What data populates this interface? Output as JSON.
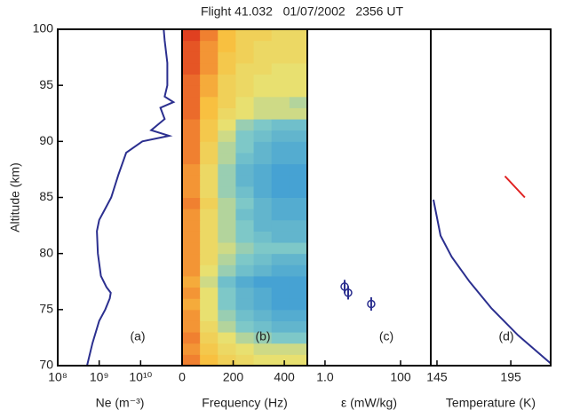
{
  "chart_data": [
    {
      "type": "line",
      "title": "Flight 41.032   01/07/2002   2356 UT",
      "panel_label": "(a)",
      "x_label": "Ne (m⁻³)",
      "y_label": "Altitude  (km)",
      "xscale": "log",
      "color": "#2b2f8f",
      "xlim": [
        100000000,
        100000000000
      ],
      "xticks": [
        {
          "value": 100000000,
          "label": "10⁸"
        },
        {
          "value": 1000000000,
          "label": "10⁹"
        },
        {
          "value": 10000000000,
          "label": "10¹⁰"
        }
      ],
      "ylim": [
        70,
        100
      ],
      "yticks": [
        70,
        75,
        80,
        85,
        90,
        95,
        100
      ],
      "x": [
        510000000.0,
        690000000.0,
        1000000000.0,
        1400000000.0,
        1800000000.0,
        1900000000.0,
        1500000000.0,
        1100000000.0,
        930000000.0,
        880000000.0,
        1000000000.0,
        1400000000.0,
        1950000000.0,
        2900000000.0,
        4500000000.0,
        11000000000.0,
        49000000000.0,
        18000000000.0,
        38000000000.0,
        30000000000.0,
        62000000000.0,
        38000000000.0,
        44000000000.0,
        44000000000.0,
        38000000000.0,
        36000000000.0
      ],
      "y": [
        70,
        72,
        74,
        75,
        76,
        76.5,
        77,
        78,
        80,
        82,
        83,
        84,
        85,
        87,
        89,
        90,
        90.5,
        91,
        92,
        93,
        93.5,
        94,
        95,
        97,
        99,
        100
      ]
    },
    {
      "type": "heatmap",
      "panel_label": "(b)",
      "x_label": "Frequency  (Hz)",
      "xlim": [
        0,
        490
      ],
      "xticks": [
        0,
        200,
        400
      ],
      "ylim": [
        70,
        100
      ],
      "x_edges": [
        0,
        70,
        140,
        210,
        280,
        350,
        420,
        490
      ],
      "y_edges": [
        70,
        71,
        72,
        73,
        74,
        75,
        76,
        77,
        78,
        79,
        80,
        81,
        82,
        83,
        84,
        85,
        86,
        87,
        88,
        89,
        90,
        91,
        92,
        93,
        94,
        95,
        96,
        97,
        98,
        99,
        100
      ],
      "colorscale": [
        [
          0,
          "#2a8fd8"
        ],
        [
          0.3,
          "#7ec8c8"
        ],
        [
          0.5,
          "#e8e070"
        ],
        [
          0.7,
          "#f8c040"
        ],
        [
          0.85,
          "#f08030"
        ],
        [
          1,
          "#e04020"
        ]
      ],
      "z": [
        [
          0.85,
          0.7,
          0.6,
          0.55,
          0.5,
          0.5,
          0.5
        ],
        [
          0.8,
          0.65,
          0.55,
          0.5,
          0.45,
          0.45,
          0.45
        ],
        [
          0.85,
          0.6,
          0.5,
          0.4,
          0.35,
          0.3,
          0.3
        ],
        [
          0.8,
          0.55,
          0.4,
          0.3,
          0.25,
          0.2,
          0.2
        ],
        [
          0.8,
          0.5,
          0.35,
          0.25,
          0.2,
          0.15,
          0.15
        ],
        [
          0.75,
          0.5,
          0.3,
          0.2,
          0.15,
          0.1,
          0.1
        ],
        [
          0.8,
          0.5,
          0.3,
          0.2,
          0.15,
          0.1,
          0.1
        ],
        [
          0.75,
          0.45,
          0.25,
          0.15,
          0.1,
          0.1,
          0.1
        ],
        [
          0.8,
          0.5,
          0.35,
          0.25,
          0.2,
          0.15,
          0.15
        ],
        [
          0.8,
          0.55,
          0.4,
          0.3,
          0.25,
          0.2,
          0.2
        ],
        [
          0.8,
          0.55,
          0.45,
          0.35,
          0.3,
          0.3,
          0.3
        ],
        [
          0.8,
          0.55,
          0.4,
          0.3,
          0.25,
          0.2,
          0.2
        ],
        [
          0.8,
          0.55,
          0.4,
          0.3,
          0.2,
          0.2,
          0.2
        ],
        [
          0.8,
          0.55,
          0.4,
          0.25,
          0.2,
          0.15,
          0.15
        ],
        [
          0.85,
          0.6,
          0.4,
          0.3,
          0.2,
          0.15,
          0.15
        ],
        [
          0.8,
          0.55,
          0.35,
          0.25,
          0.15,
          0.1,
          0.1
        ],
        [
          0.8,
          0.55,
          0.35,
          0.2,
          0.15,
          0.1,
          0.1
        ],
        [
          0.8,
          0.55,
          0.35,
          0.2,
          0.15,
          0.1,
          0.1
        ],
        [
          0.85,
          0.6,
          0.4,
          0.25,
          0.2,
          0.15,
          0.15
        ],
        [
          0.85,
          0.6,
          0.4,
          0.3,
          0.2,
          0.15,
          0.15
        ],
        [
          0.85,
          0.65,
          0.45,
          0.3,
          0.25,
          0.2,
          0.2
        ],
        [
          0.85,
          0.65,
          0.5,
          0.35,
          0.3,
          0.25,
          0.25
        ],
        [
          0.9,
          0.7,
          0.55,
          0.5,
          0.45,
          0.45,
          0.45
        ],
        [
          0.9,
          0.7,
          0.6,
          0.5,
          0.45,
          0.45,
          0.4
        ],
        [
          0.9,
          0.75,
          0.6,
          0.55,
          0.5,
          0.5,
          0.5
        ],
        [
          0.9,
          0.75,
          0.6,
          0.55,
          0.5,
          0.5,
          0.5
        ],
        [
          0.95,
          0.8,
          0.65,
          0.55,
          0.55,
          0.5,
          0.5
        ],
        [
          0.95,
          0.8,
          0.65,
          0.6,
          0.55,
          0.55,
          0.55
        ],
        [
          0.95,
          0.8,
          0.7,
          0.6,
          0.55,
          0.55,
          0.55
        ],
        [
          1,
          0.85,
          0.7,
          0.6,
          0.6,
          0.55,
          0.55
        ]
      ]
    },
    {
      "type": "scatter",
      "panel_label": "(c)",
      "x_label": "ε (mW/kg)",
      "xscale": "log",
      "color": "#2b2f8f",
      "xlim": [
        0.34,
        630
      ],
      "xticks": [
        {
          "value": 1,
          "label": "1.0"
        },
        100
      ],
      "ylim": [
        70,
        100
      ],
      "x": [
        3.3,
        4.1,
        16.7
      ],
      "y": [
        77.05,
        76.5,
        75.5
      ],
      "yerr": [
        0.6,
        0.6,
        0.6
      ]
    },
    {
      "type": "line",
      "panel_label": "(d)",
      "x_label": "Temperature  (K)",
      "xlim": [
        140.8,
        222
      ],
      "xticks": [
        145,
        195
      ],
      "ylim": [
        70,
        100
      ],
      "series": [
        {
          "color": "#2b2f8f",
          "x": [
            142.6,
            147.4,
            155,
            167,
            182,
            200,
            222
          ],
          "y": [
            84.8,
            81.6,
            79.7,
            77.5,
            75.1,
            72.7,
            70.2
          ]
        },
        {
          "color": "#e02020",
          "x": [
            191,
            204.5
          ],
          "y": [
            86.9,
            85.0
          ]
        }
      ]
    }
  ]
}
